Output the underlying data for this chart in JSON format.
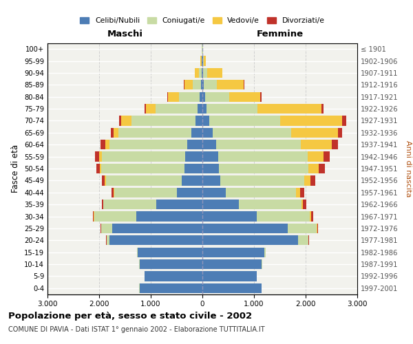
{
  "age_groups": [
    "100+",
    "95-99",
    "90-94",
    "85-89",
    "80-84",
    "75-79",
    "70-74",
    "65-69",
    "60-64",
    "55-59",
    "50-54",
    "45-49",
    "40-44",
    "35-39",
    "30-34",
    "25-29",
    "20-24",
    "15-19",
    "10-14",
    "5-9",
    "0-4"
  ],
  "birth_years": [
    "≤ 1901",
    "1902-1906",
    "1907-1911",
    "1912-1916",
    "1917-1921",
    "1922-1926",
    "1927-1931",
    "1932-1936",
    "1937-1941",
    "1942-1946",
    "1947-1951",
    "1952-1956",
    "1957-1961",
    "1962-1966",
    "1967-1971",
    "1972-1976",
    "1977-1981",
    "1982-1986",
    "1987-1991",
    "1992-1996",
    "1997-2001"
  ],
  "males_celibe": [
    5,
    8,
    15,
    30,
    55,
    90,
    140,
    210,
    290,
    340,
    350,
    400,
    500,
    900,
    1280,
    1750,
    1800,
    1250,
    1220,
    1120,
    1220
  ],
  "males_coniugato": [
    5,
    12,
    55,
    160,
    400,
    820,
    1230,
    1420,
    1510,
    1610,
    1610,
    1470,
    1210,
    1020,
    820,
    210,
    55,
    12,
    5,
    2,
    1
  ],
  "males_vedovo": [
    5,
    20,
    80,
    160,
    210,
    180,
    200,
    90,
    75,
    50,
    30,
    20,
    10,
    5,
    2,
    2,
    1,
    0,
    0,
    0,
    0
  ],
  "males_divorziato": [
    0,
    0,
    0,
    5,
    12,
    30,
    50,
    60,
    100,
    80,
    60,
    60,
    40,
    25,
    18,
    10,
    5,
    2,
    0,
    0,
    0
  ],
  "females_nubile": [
    5,
    8,
    18,
    30,
    55,
    80,
    130,
    200,
    270,
    310,
    320,
    350,
    450,
    700,
    1050,
    1650,
    1850,
    1200,
    1150,
    1050,
    1150
  ],
  "females_coniugata": [
    5,
    12,
    80,
    250,
    460,
    980,
    1380,
    1520,
    1630,
    1730,
    1730,
    1620,
    1360,
    1220,
    1030,
    560,
    200,
    20,
    5,
    2,
    1
  ],
  "females_vedova": [
    8,
    50,
    290,
    520,
    610,
    1250,
    1200,
    900,
    600,
    300,
    200,
    120,
    80,
    30,
    20,
    10,
    5,
    2,
    1,
    0,
    0
  ],
  "females_divorziata": [
    0,
    0,
    5,
    10,
    20,
    30,
    80,
    80,
    120,
    120,
    120,
    100,
    80,
    60,
    40,
    20,
    10,
    3,
    0,
    0,
    0
  ],
  "colors": {
    "celibe": "#4d7db5",
    "coniugato": "#c8dba4",
    "vedovo": "#f5c842",
    "divorziato": "#c0322a"
  },
  "xlim": 3000,
  "title": "Popolazione per età, sesso e stato civile - 2002",
  "subtitle": "COMUNE DI PAVIA - Dati ISTAT 1° gennaio 2002 - Elaborazione TUTTITALIA.IT",
  "xlabel_left": "Maschi",
  "xlabel_right": "Femmine",
  "ylabel": "Fasce di età",
  "ylabel_right": "Anni di nascita",
  "legend_labels": [
    "Celibi/Nubili",
    "Coniugati/e",
    "Vedovi/e",
    "Divorziati/e"
  ],
  "bg_color": "#f2f2ed",
  "grid_color": "#cccccc"
}
